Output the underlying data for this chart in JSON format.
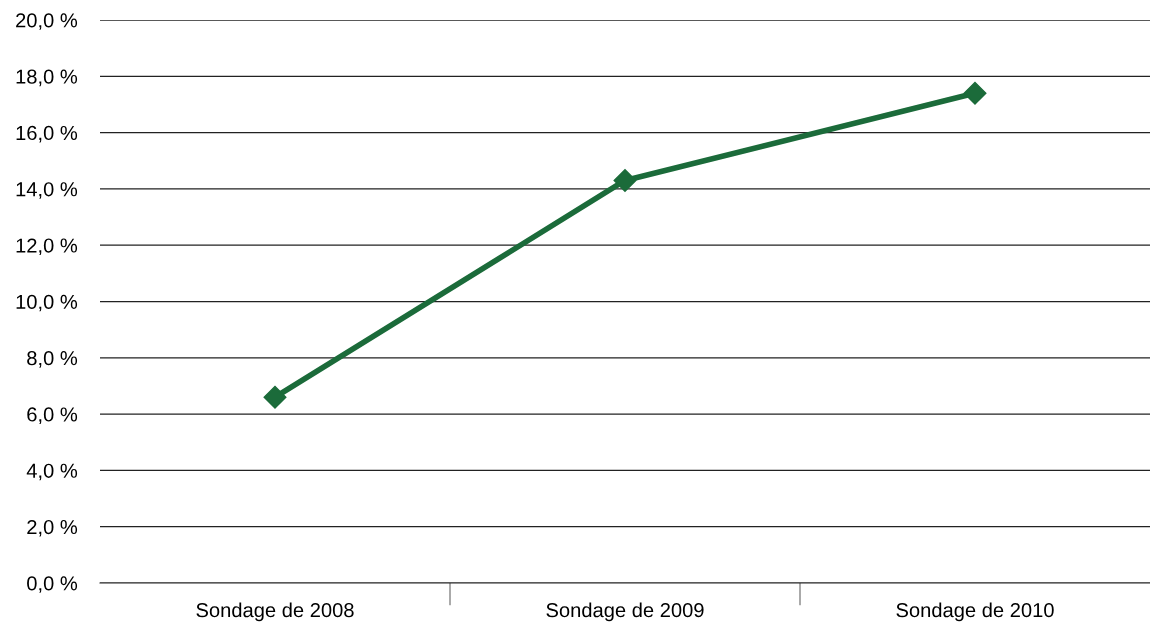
{
  "chart_data": {
    "type": "line",
    "categories": [
      "Sondage de 2008",
      "Sondage de 2009",
      "Sondage de 2010"
    ],
    "series": [
      {
        "color": "#1b6b3a",
        "values": [
          6.6,
          14.3,
          17.4
        ]
      }
    ],
    "ylim": [
      0,
      20
    ],
    "yticks": [
      {
        "value": 0,
        "label": "0,0 %"
      },
      {
        "value": 2,
        "label": "2,0 %"
      },
      {
        "value": 4,
        "label": "4,0 %"
      },
      {
        "value": 6,
        "label": "6,0 %"
      },
      {
        "value": 8,
        "label": "8,0 %"
      },
      {
        "value": 10,
        "label": "10,0 %"
      },
      {
        "value": 12,
        "label": "12,0 %"
      },
      {
        "value": 14,
        "label": "14,0 %"
      },
      {
        "value": 16,
        "label": "16,0 %"
      },
      {
        "value": 18,
        "label": "18,0 %"
      },
      {
        "value": 20,
        "label": "20,0 %"
      }
    ],
    "grid": "y",
    "marker": "diamond",
    "line_style": "solid"
  }
}
